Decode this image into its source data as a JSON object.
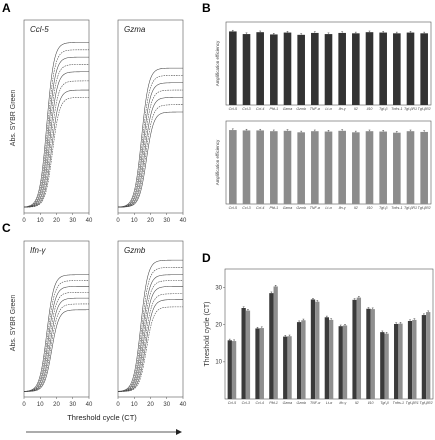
{
  "panels": {
    "A": "A",
    "B": "B",
    "C": "C",
    "D": "D"
  },
  "amp_axis_label": "Abs. SYBR Green",
  "threshold_axis_label": "Threshold cycle (CT)",
  "amp_x_ticks": [
    "0",
    "10",
    "20",
    "30",
    "40"
  ],
  "genes": [
    "Ccl-5",
    "Ccl-3",
    "Ccl-4",
    "Pfd-1",
    "Gzma",
    "Gzmb",
    "TNF-α",
    "Lt-α",
    "Ifn-γ",
    "Il2",
    "Il10",
    "Tgf-β",
    "Tnfrs-1",
    "Tgf-βR1",
    "Tgf-βR2"
  ],
  "colors": {
    "bar_dark": "#3a3a3a",
    "bar_light": "#8f8f8f",
    "bar_B_top": "#333333",
    "bar_B_bottom": "#8c8c8c",
    "curve": "#444444"
  },
  "chart_data": [
    {
      "panel": "A",
      "type": "line",
      "title": "Ccl-5",
      "xlabel": "",
      "ylabel": "Abs. SYBR Green",
      "xlim": [
        0,
        40
      ],
      "x_ticks": [
        0,
        10,
        20,
        30,
        40
      ],
      "series": [
        {
          "midpoint": 14.0,
          "plateau": 0.9
        },
        {
          "midpoint": 14.5,
          "plateau": 0.86
        },
        {
          "midpoint": 15.0,
          "plateau": 0.82
        },
        {
          "midpoint": 15.5,
          "plateau": 0.78
        },
        {
          "midpoint": 16.0,
          "plateau": 0.74
        },
        {
          "midpoint": 16.5,
          "plateau": 0.69
        },
        {
          "midpoint": 17.0,
          "plateau": 0.64
        },
        {
          "midpoint": 17.5,
          "plateau": 0.6
        }
      ]
    },
    {
      "panel": "A",
      "type": "line",
      "title": "Gzma",
      "xlabel": "",
      "ylabel": "",
      "xlim": [
        0,
        40
      ],
      "x_ticks": [
        0,
        10,
        20,
        30,
        40
      ],
      "series": [
        {
          "midpoint": 14.5,
          "plateau": 0.76
        },
        {
          "midpoint": 15.0,
          "plateau": 0.72
        },
        {
          "midpoint": 15.5,
          "plateau": 0.68
        },
        {
          "midpoint": 16.0,
          "plateau": 0.64
        },
        {
          "midpoint": 16.5,
          "plateau": 0.6
        },
        {
          "midpoint": 17.0,
          "plateau": 0.56
        },
        {
          "midpoint": 17.5,
          "plateau": 0.52
        }
      ]
    },
    {
      "panel": "C",
      "type": "line",
      "title": "Ifn-γ",
      "xlabel": "",
      "ylabel": "Abs. SYBR Green",
      "xlim": [
        0,
        40
      ],
      "x_ticks": [
        0,
        10,
        20,
        30,
        40
      ],
      "series": [
        {
          "midpoint": 14.0,
          "plateau": 0.8
        },
        {
          "midpoint": 14.5,
          "plateau": 0.76
        },
        {
          "midpoint": 15.0,
          "plateau": 0.72
        },
        {
          "midpoint": 15.5,
          "plateau": 0.68
        },
        {
          "midpoint": 16.0,
          "plateau": 0.64
        },
        {
          "midpoint": 16.5,
          "plateau": 0.6
        },
        {
          "midpoint": 17.0,
          "plateau": 0.56
        }
      ]
    },
    {
      "panel": "C",
      "type": "line",
      "title": "Gzmb",
      "xlabel": "",
      "ylabel": "",
      "xlim": [
        0,
        40
      ],
      "x_ticks": [
        0,
        10,
        20,
        30,
        40
      ],
      "series": [
        {
          "midpoint": 14.0,
          "plateau": 0.9
        },
        {
          "midpoint": 14.5,
          "plateau": 0.85
        },
        {
          "midpoint": 15.0,
          "plateau": 0.8
        },
        {
          "midpoint": 15.5,
          "plateau": 0.76
        },
        {
          "midpoint": 16.0,
          "plateau": 0.72
        },
        {
          "midpoint": 16.5,
          "plateau": 0.67
        },
        {
          "midpoint": 17.0,
          "plateau": 0.63
        },
        {
          "midpoint": 17.5,
          "plateau": 0.58
        }
      ]
    },
    {
      "panel": "B-top",
      "type": "bar",
      "ylabel": "Amplification efficiency",
      "categories": [
        "Ccl-5",
        "Ccl-3",
        "Ccl-4",
        "Pfd-1",
        "Gzma",
        "Gzmb",
        "TNF-α",
        "Lt-α",
        "Ifn-γ",
        "Il2",
        "Il10",
        "Tgf-β",
        "Tnfrs-1",
        "Tgf-βR1",
        "Tgf-βR2"
      ],
      "values": [
        1.95,
        1.88,
        1.93,
        1.87,
        1.92,
        1.86,
        1.91,
        1.88,
        1.91,
        1.9,
        1.93,
        1.92,
        1.9,
        1.92,
        1.9
      ],
      "ylim": [
        0,
        2.2
      ]
    },
    {
      "panel": "B-bottom",
      "type": "bar",
      "ylabel": "Amplification efficiency",
      "categories": [
        "Ccl-5",
        "Ccl-3",
        "Ccl-4",
        "Pfd-1",
        "Gzma",
        "Gzmb",
        "TNF-α",
        "Lt-α",
        "Ifn-γ",
        "Il2",
        "Il10",
        "Tgf-β",
        "Tnfrs-1",
        "Tgf-βR1",
        "Tgf-βR2"
      ],
      "values": [
        1.96,
        1.95,
        1.95,
        1.93,
        1.94,
        1.9,
        1.93,
        1.92,
        1.94,
        1.9,
        1.93,
        1.92,
        1.89,
        1.93,
        1.91
      ],
      "ylim": [
        0,
        2.2
      ]
    },
    {
      "panel": "D",
      "type": "bar",
      "ylabel": "Threshold cycle (CT)",
      "categories": [
        "Ccl-5",
        "Ccl-3",
        "Ccl-4",
        "Pfd-1",
        "Gzma",
        "Gzmb",
        "TNF-α",
        "Lt-α",
        "Ifn-γ",
        "Il2",
        "Il10",
        "Tgf-β",
        "Tnfrs-1",
        "Tgf-βR1",
        "Tgf-βR2"
      ],
      "y_ticks": [
        10,
        20,
        30
      ],
      "ylim": [
        0,
        35
      ],
      "series": [
        {
          "values": [
            15.8,
            24.5,
            19.0,
            28.5,
            16.8,
            20.7,
            26.8,
            22.0,
            19.6,
            26.7,
            24.3,
            18.0,
            20.2,
            21.0,
            22.6
          ]
        },
        {
          "values": [
            15.6,
            23.8,
            19.1,
            30.3,
            16.9,
            21.2,
            26.2,
            21.3,
            19.8,
            27.3,
            24.2,
            17.6,
            20.3,
            21.3,
            23.4
          ]
        }
      ]
    }
  ]
}
